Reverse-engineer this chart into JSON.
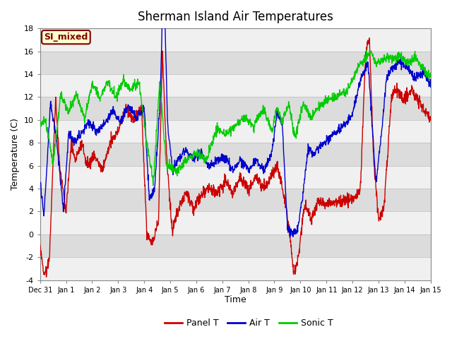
{
  "title": "Sherman Island Air Temperatures",
  "xlabel": "Time",
  "ylabel": "Temperature (C)",
  "ylim": [
    -4,
    18
  ],
  "yticks": [
    -4,
    -2,
    0,
    2,
    4,
    6,
    8,
    10,
    12,
    14,
    16,
    18
  ],
  "xtick_labels": [
    "Dec 31",
    "Jan 1",
    "Jan 2",
    "Jan 3",
    "Jan 4",
    "Jan 5",
    "Jan 6",
    "Jan 7",
    "Jan 8",
    "Jan 9",
    "Jan 10",
    "Jan 11",
    "Jan 12",
    "Jan 13",
    "Jan 14",
    "Jan 15"
  ],
  "legend_entries": [
    "Panel T",
    "Air T",
    "Sonic T"
  ],
  "line_colors": [
    "#cc0000",
    "#0000cc",
    "#00cc00"
  ],
  "annotation_label": "SI_mixed",
  "annotation_color": "#800000",
  "annotation_bg": "#ffffcc",
  "stripe_color_light": "#f0f0f0",
  "stripe_color_dark": "#dcdcdc",
  "title_fontsize": 12,
  "axis_fontsize": 9,
  "tick_fontsize": 8,
  "legend_fontsize": 9
}
